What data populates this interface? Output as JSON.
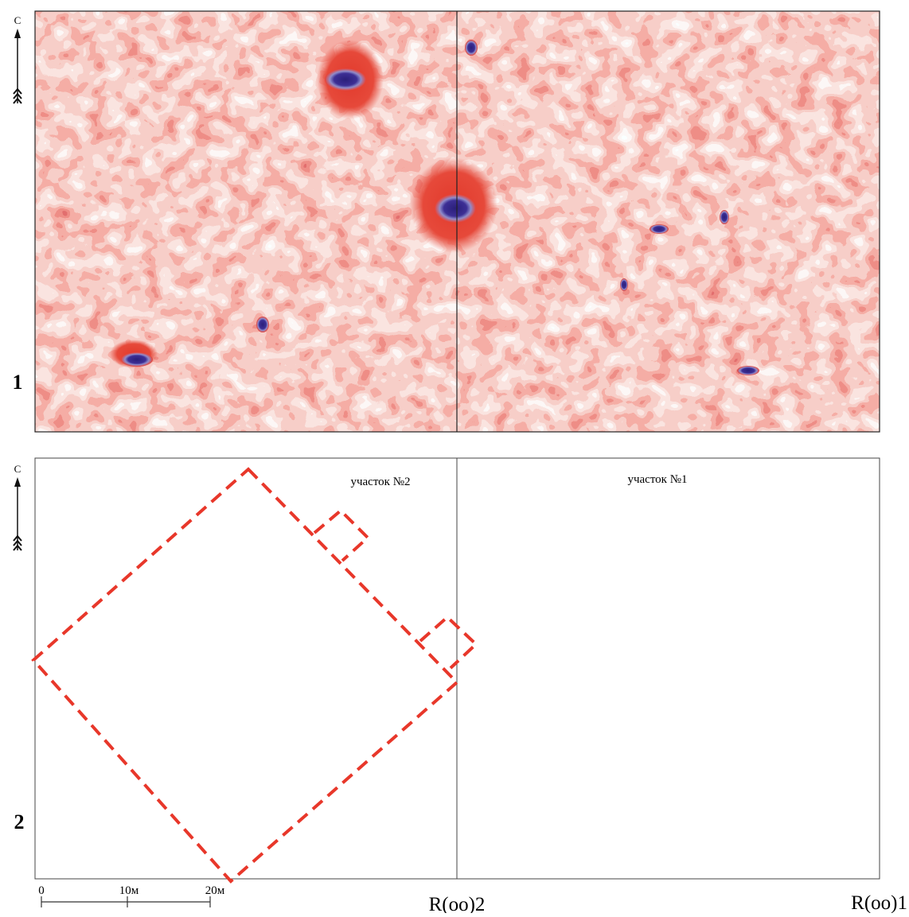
{
  "figure": {
    "panels": [
      {
        "label": "1",
        "north": "С"
      },
      {
        "label": "2",
        "north": "С",
        "areas": [
          "участок №2",
          "участок №1"
        ]
      }
    ],
    "scale": [
      "0",
      "10м",
      "20м"
    ],
    "profiles": [
      "R(oo)2",
      "R(oo)1"
    ]
  }
}
